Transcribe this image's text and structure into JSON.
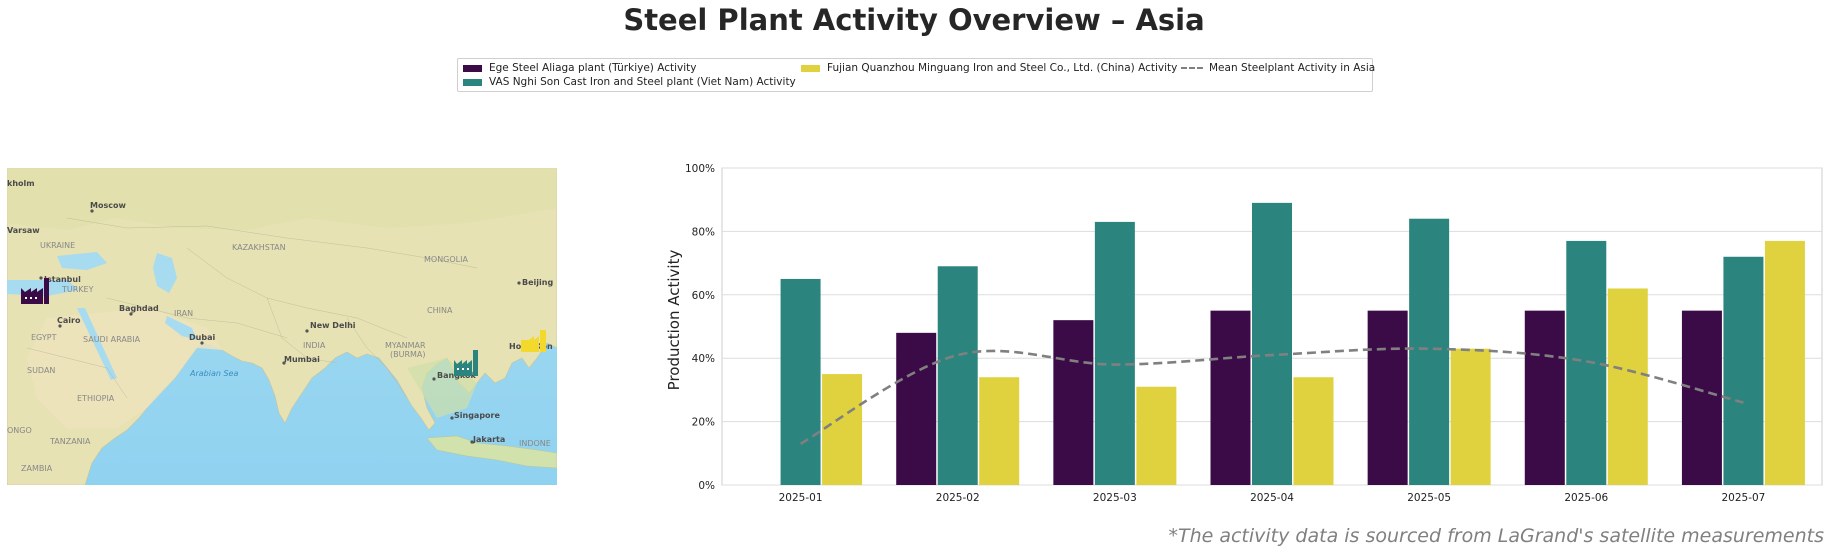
{
  "title": "Steel Plant Activity Overview – Asia",
  "legend": [
    {
      "label": "Ege Steel Aliaga plant (Türkiye) Activity",
      "color": "#3b0b47",
      "kind": "bar"
    },
    {
      "label": "VAS Nghi Son Cast Iron and Steel plant (Viet Nam) Activity",
      "color": "#2c847e",
      "kind": "bar"
    },
    {
      "label": "Fujian Quanzhou Minguang Iron and Steel Co., Ltd. (China) Activity",
      "color": "#e0d23e",
      "kind": "bar"
    },
    {
      "label": "Mean Steelplant Activity in Asia",
      "color": "#808080",
      "kind": "line"
    }
  ],
  "map": {
    "labels": {
      "stockholm": "kholm",
      "moscow": "Moscow",
      "warsaw": "Varsaw",
      "ukraine": "UKRAINE",
      "kazakhstan": "KAZAKHSTAN",
      "mongolia": "MONGOLIA",
      "istanbul": "Istanbul",
      "turkey": "TURKEY",
      "beijing": "Beijing",
      "baghdad": "Baghdad",
      "iran": "IRAN",
      "china": "CHINA",
      "cairo": "Cairo",
      "egypt": "EGYPT",
      "saudi": "SAUDI ARABIA",
      "dubai": "Dubai",
      "newdelhi": "New Delhi",
      "india": "INDIA",
      "myanmar": "MYANMAR",
      "burma": "(BURMA)",
      "hongkong": "Hong Kon",
      "mumbai": "Mumbai",
      "sudan": "SUDAN",
      "arabiansea": "Arabian Sea",
      "bangkok": "Bangkok",
      "ethiopia": "ETHIOPIA",
      "singapore": "Singapore",
      "ongo": "ONGO",
      "tanzania": "TANZANIA",
      "jakarta": "Jakarta",
      "indone": "INDONE",
      "zambia": "ZAMBIA"
    }
  },
  "chart_data": {
    "type": "bar",
    "categories": [
      "2025-01",
      "2025-02",
      "2025-03",
      "2025-04",
      "2025-05",
      "2025-06",
      "2025-07"
    ],
    "series": [
      {
        "name": "Ege Steel Aliaga plant (Türkiye) Activity",
        "color": "#3b0b47",
        "values": [
          null,
          48,
          52,
          55,
          55,
          55,
          55
        ]
      },
      {
        "name": "VAS Nghi Son Cast Iron and Steel plant (Viet Nam) Activity",
        "color": "#2c847e",
        "values": [
          65,
          69,
          83,
          89,
          84,
          77,
          72
        ]
      },
      {
        "name": "Fujian Quanzhou Minguang Iron and Steel Co., Ltd. (China) Activity",
        "color": "#e0d23e",
        "values": [
          35,
          34,
          31,
          34,
          43,
          62,
          77
        ]
      }
    ],
    "line": {
      "name": "Mean Steelplant Activity in Asia",
      "color": "#808080",
      "style": "dashed",
      "values": [
        13,
        41,
        38,
        41,
        43,
        39,
        26
      ]
    },
    "ylabel": "Production Activity",
    "xlabel": "",
    "ylim": [
      0,
      100
    ],
    "yticks": [
      "0%",
      "20%",
      "40%",
      "60%",
      "80%",
      "100%"
    ],
    "grid": true
  },
  "footnote": "*The activity data is sourced from LaGrand's satellite measurements"
}
